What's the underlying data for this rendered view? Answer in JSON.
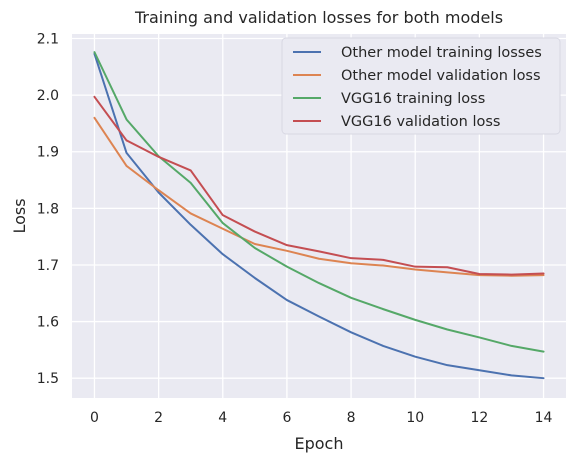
{
  "chart_data": {
    "type": "line",
    "title": "Training and validation losses for both models",
    "xlabel": "Epoch",
    "ylabel": "Loss",
    "xlim": [
      -0.7,
      14.7
    ],
    "ylim": [
      1.465,
      2.108
    ],
    "xticks": [
      0,
      2,
      4,
      6,
      8,
      10,
      12,
      14
    ],
    "yticks": [
      1.5,
      1.6,
      1.7,
      1.8,
      1.9,
      2.0,
      2.1
    ],
    "grid": true,
    "legend_position": "top-right",
    "x": [
      0,
      1,
      2,
      3,
      4,
      5,
      6,
      7,
      8,
      9,
      10,
      11,
      12,
      13,
      14
    ],
    "series": [
      {
        "name": "Other model training losses",
        "color": "#4c72b0",
        "values": [
          2.073,
          1.898,
          1.828,
          1.771,
          1.719,
          1.677,
          1.638,
          1.609,
          1.581,
          1.557,
          1.538,
          1.523,
          1.514,
          1.505,
          1.5
        ]
      },
      {
        "name": "Other model validation loss",
        "color": "#dd8452",
        "values": [
          1.96,
          1.875,
          1.832,
          1.791,
          1.764,
          1.737,
          1.725,
          1.711,
          1.703,
          1.699,
          1.692,
          1.687,
          1.682,
          1.681,
          1.682
        ]
      },
      {
        "name": "VGG16 training loss",
        "color": "#55a868",
        "values": [
          2.076,
          1.957,
          1.892,
          1.845,
          1.774,
          1.73,
          1.697,
          1.668,
          1.642,
          1.622,
          1.603,
          1.586,
          1.572,
          1.557,
          1.547
        ]
      },
      {
        "name": "VGG16 validation loss",
        "color": "#c44e52",
        "values": [
          1.997,
          1.92,
          1.891,
          1.867,
          1.788,
          1.759,
          1.735,
          1.724,
          1.712,
          1.709,
          1.697,
          1.696,
          1.684,
          1.683,
          1.685
        ]
      }
    ]
  }
}
